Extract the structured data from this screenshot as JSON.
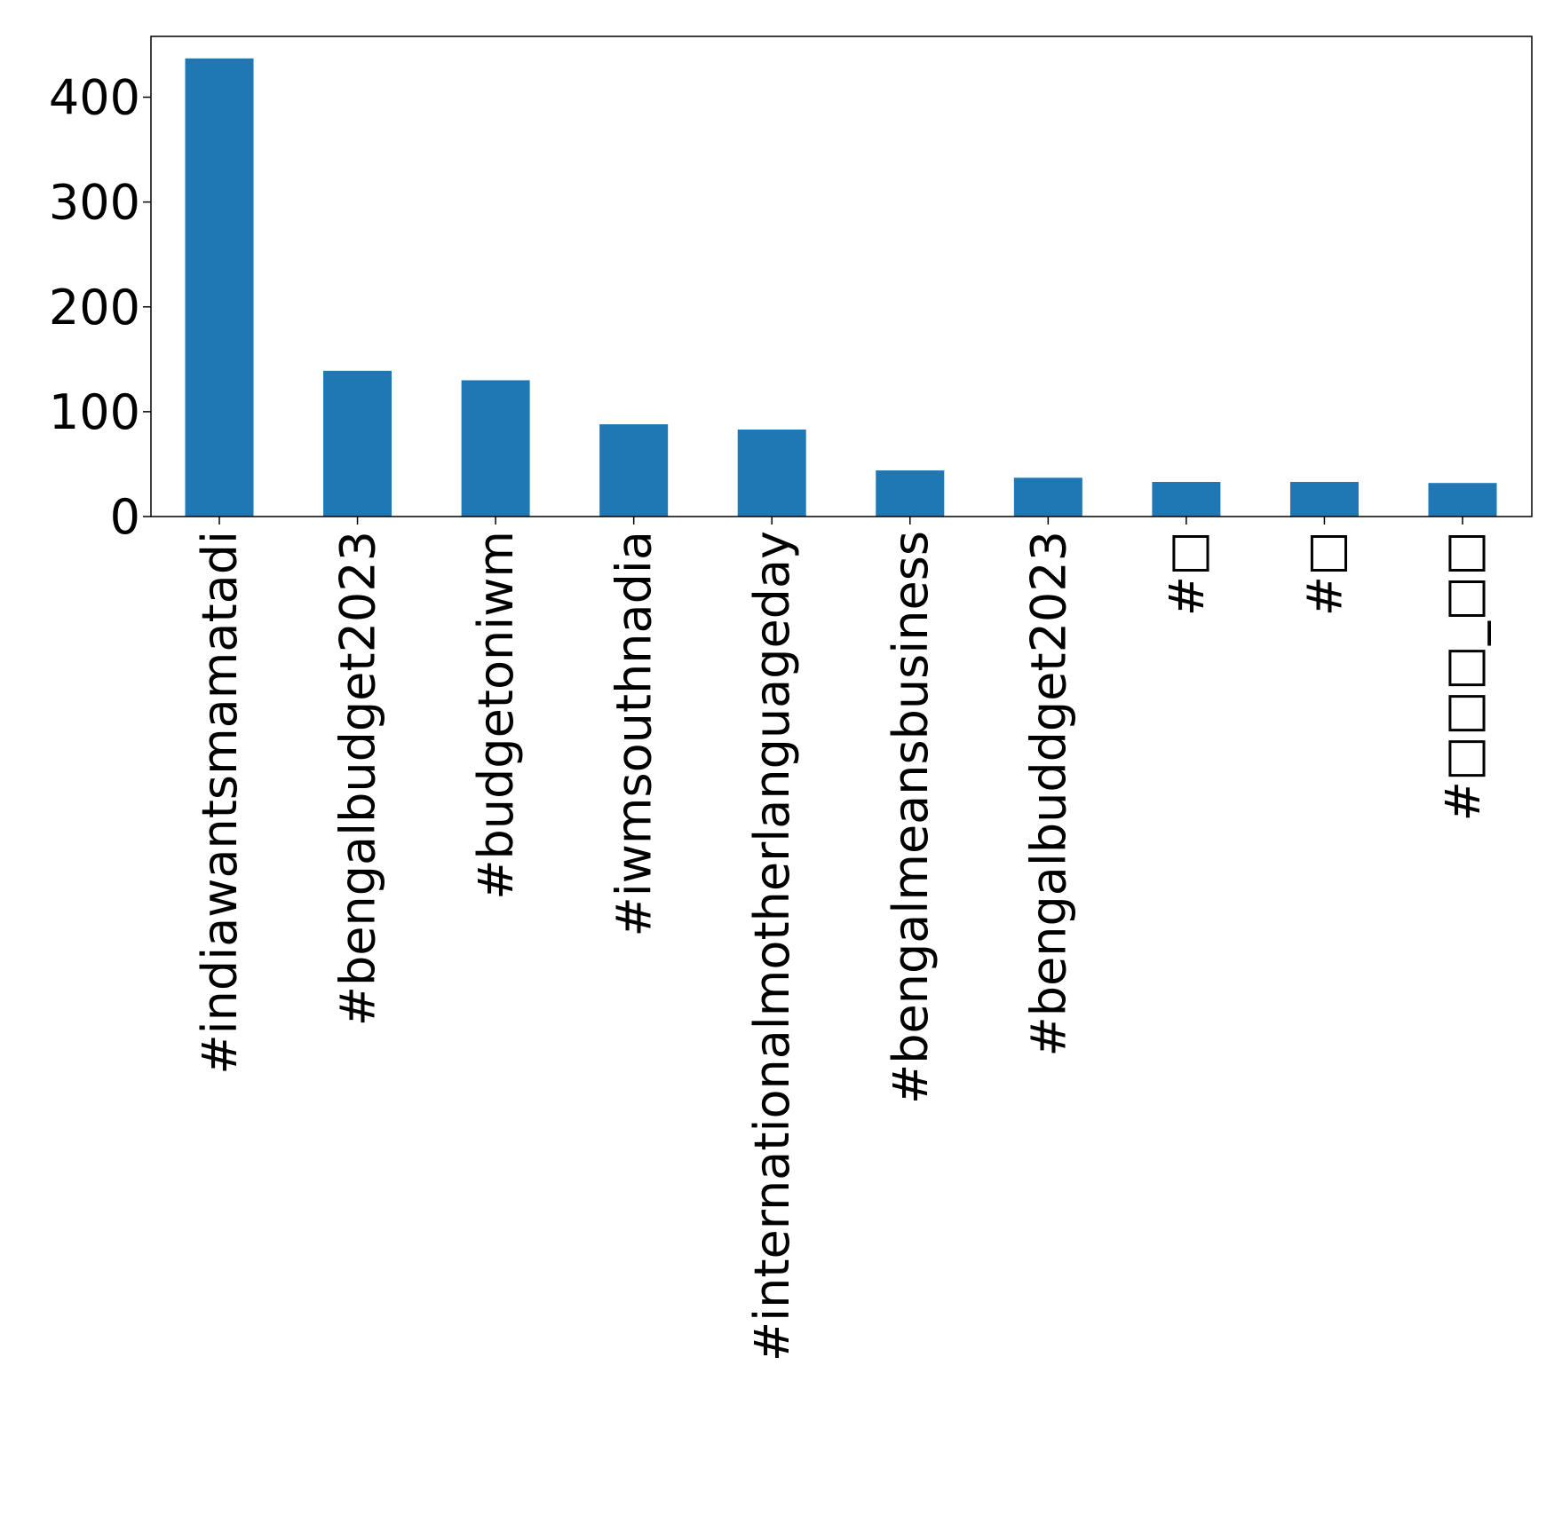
{
  "chart_data": {
    "type": "bar",
    "title": "",
    "xlabel": "",
    "ylabel": "",
    "categories": [
      "#indiawantsmamatadi",
      "#bengalbudget2023",
      "#budgetoniwm",
      "#iwmsouthnadia",
      "#internationalmotherlanguageday",
      "#bengalmeansbusiness",
      "#bengalbuddget2023",
      "#□",
      "#□",
      "#□□□_□□"
    ],
    "values": [
      437,
      139,
      130,
      88,
      83,
      44,
      37,
      33,
      33,
      32
    ],
    "ylim": [
      0,
      458
    ],
    "yticks": [
      0,
      100,
      200,
      300,
      400
    ],
    "ytick_labels": [
      "0",
      "100",
      "200",
      "300",
      "400"
    ],
    "grid": false,
    "legend": "none",
    "colors": {
      "bar": "#1f77b4",
      "axis": "#000000",
      "background": "#ffffff"
    }
  }
}
